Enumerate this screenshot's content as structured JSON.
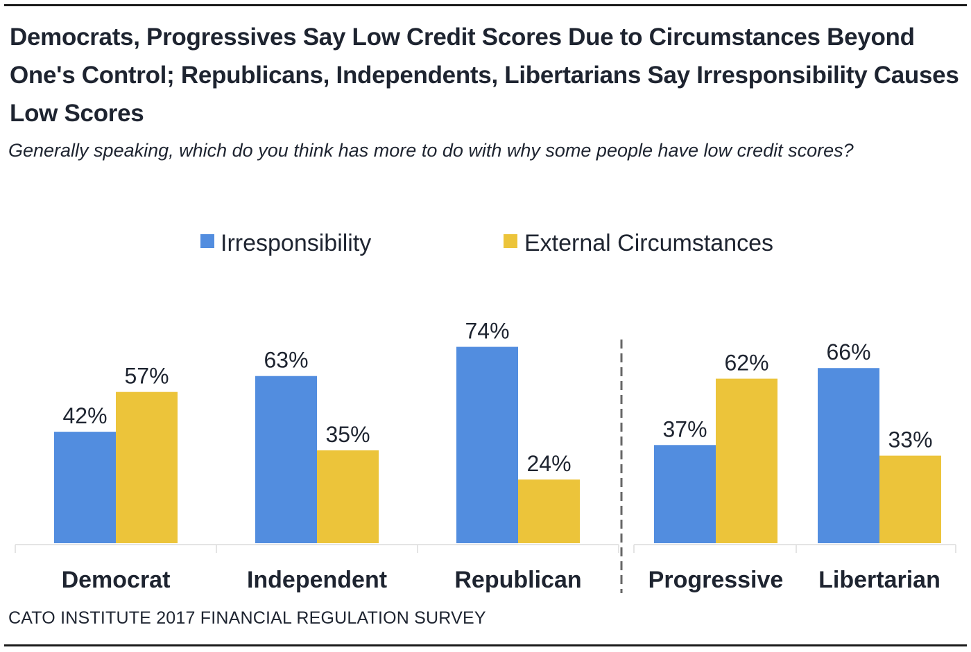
{
  "title": "Democrats, Progressives Say Low Credit Scores Due to Circumstances Beyond One's Control; Republicans, Independents, Libertarians Say Irresponsibility Causes Low Scores",
  "subtitle": "Generally speaking, which do you think has more to do with why some people have low credit scores?",
  "source": "CATO INSTITUTE 2017 FINANCIAL REGULATION SURVEY",
  "colors": {
    "irresponsibility": "#528ddf",
    "external": "#ecc43a",
    "axis": "#e4e4e4",
    "divider": "#666666"
  },
  "chart_data": {
    "type": "bar",
    "title": "Democrats, Progressives Say Low Credit Scores Due to Circumstances Beyond One's Control; Republicans, Independents, Libertarians Say Irresponsibility Causes Low Scores",
    "subtitle": "Generally speaking, which do you think has more to do with why some people have low credit scores?",
    "categories": [
      "Democrat",
      "Independent",
      "Republican",
      "Progressive",
      "Libertarian"
    ],
    "groups": [
      [
        "Democrat",
        "Independent",
        "Republican"
      ],
      [
        "Progressive",
        "Libertarian"
      ]
    ],
    "series": [
      {
        "name": "Irresponsibility",
        "values": [
          42,
          63,
          74,
          37,
          66
        ],
        "color": "#528ddf"
      },
      {
        "name": "External Circumstances",
        "values": [
          57,
          35,
          24,
          62,
          33
        ],
        "color": "#ecc43a"
      }
    ],
    "value_suffix": "%",
    "xlabel": "",
    "ylabel": "",
    "ylim": [
      0,
      100
    ],
    "grid": false,
    "legend_position": "top-center",
    "data_labels": true
  }
}
